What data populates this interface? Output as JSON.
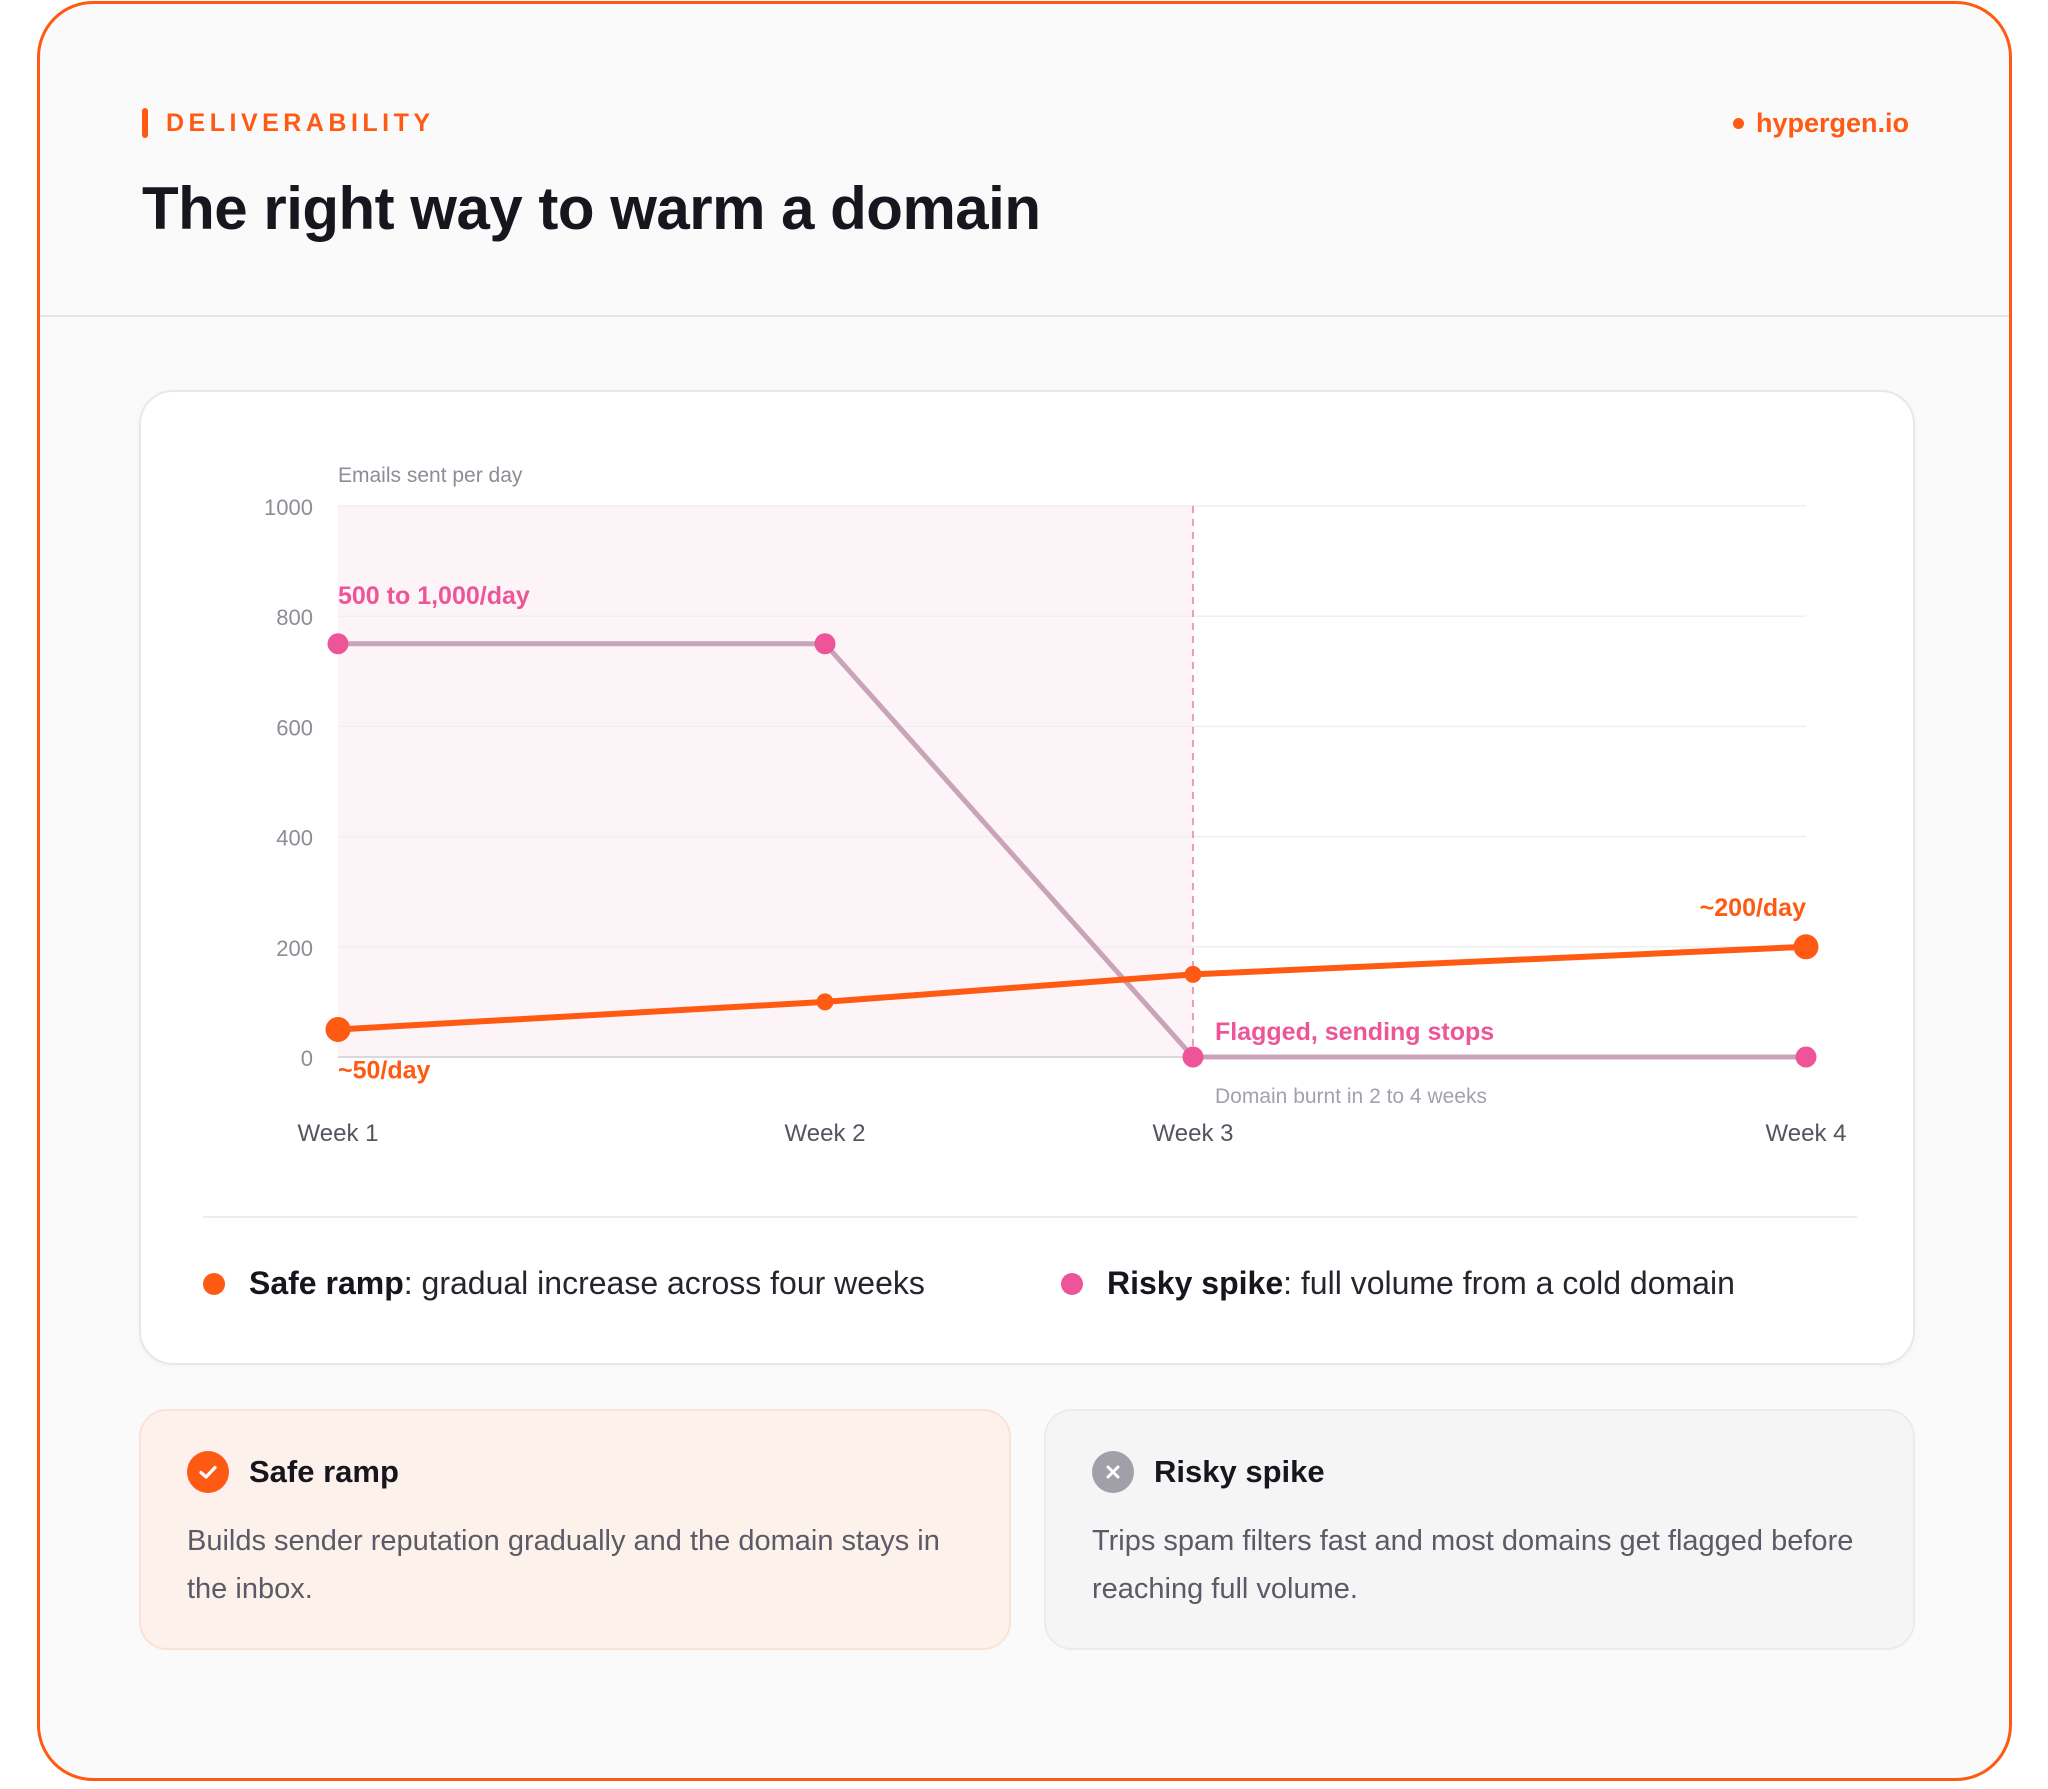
{
  "header": {
    "eyebrow": "DELIVERABILITY",
    "brand": "hypergen.io",
    "title": "The right way to warm a domain"
  },
  "colors": {
    "accent": "#ff5a14",
    "safe": "#ff5a14",
    "risky": "#ee5599",
    "risky_line": "#c9a3b8",
    "danger_zone": "#fdf4f7",
    "text_dark": "#17161e",
    "muted": "#8d8c97"
  },
  "chart_data": {
    "type": "line",
    "ylabel": "Emails sent per day",
    "ylim": [
      0,
      1000
    ],
    "yticks": [
      0,
      200,
      400,
      600,
      800,
      1000
    ],
    "x_categories": [
      "Week 1",
      "Week 2",
      "Week 3",
      "Week 4"
    ],
    "grid": true,
    "series": [
      {
        "name": "Safe ramp",
        "color": "#ff5a14",
        "x": [
          1,
          2,
          3,
          4
        ],
        "values": [
          50,
          100,
          150,
          200
        ]
      },
      {
        "name": "Risky spike",
        "color": "#ee5599",
        "x": [
          1,
          2,
          3,
          4
        ],
        "values": [
          750,
          750,
          0,
          0
        ]
      }
    ],
    "shaded_region": {
      "x_from": 1,
      "x_to": 3,
      "meaning": "danger zone"
    },
    "marker_line_x": 3,
    "annotations": [
      {
        "text": "500 to 1,000/day",
        "x": 1,
        "y": 750,
        "series": "Risky spike"
      },
      {
        "text": "~50/day",
        "x": 1,
        "y": 50,
        "series": "Safe ramp"
      },
      {
        "text": "~200/day",
        "x": 4,
        "y": 200,
        "series": "Safe ramp"
      },
      {
        "text": "Flagged, sending stops",
        "x": 3,
        "y": 0,
        "series": "Risky spike"
      },
      {
        "text": "Domain burnt in 2 to 4 weeks",
        "x": 3,
        "y": 0,
        "series": "note"
      }
    ],
    "legend": {
      "placement": "bottom",
      "items": [
        {
          "name": "Safe ramp",
          "description": ": gradual increase across four weeks",
          "color": "#ff5a14"
        },
        {
          "name": "Risky spike",
          "description": ": full volume from a cold domain",
          "color": "#ee5599"
        }
      ]
    }
  },
  "cards": {
    "safe": {
      "title": "Safe ramp",
      "icon": "check-icon",
      "body": "Builds sender reputation gradually and the domain stays in the inbox."
    },
    "risky": {
      "title": "Risky spike",
      "icon": "x-icon",
      "body": "Trips spam filters fast and most domains get flagged before reaching full volume."
    }
  }
}
